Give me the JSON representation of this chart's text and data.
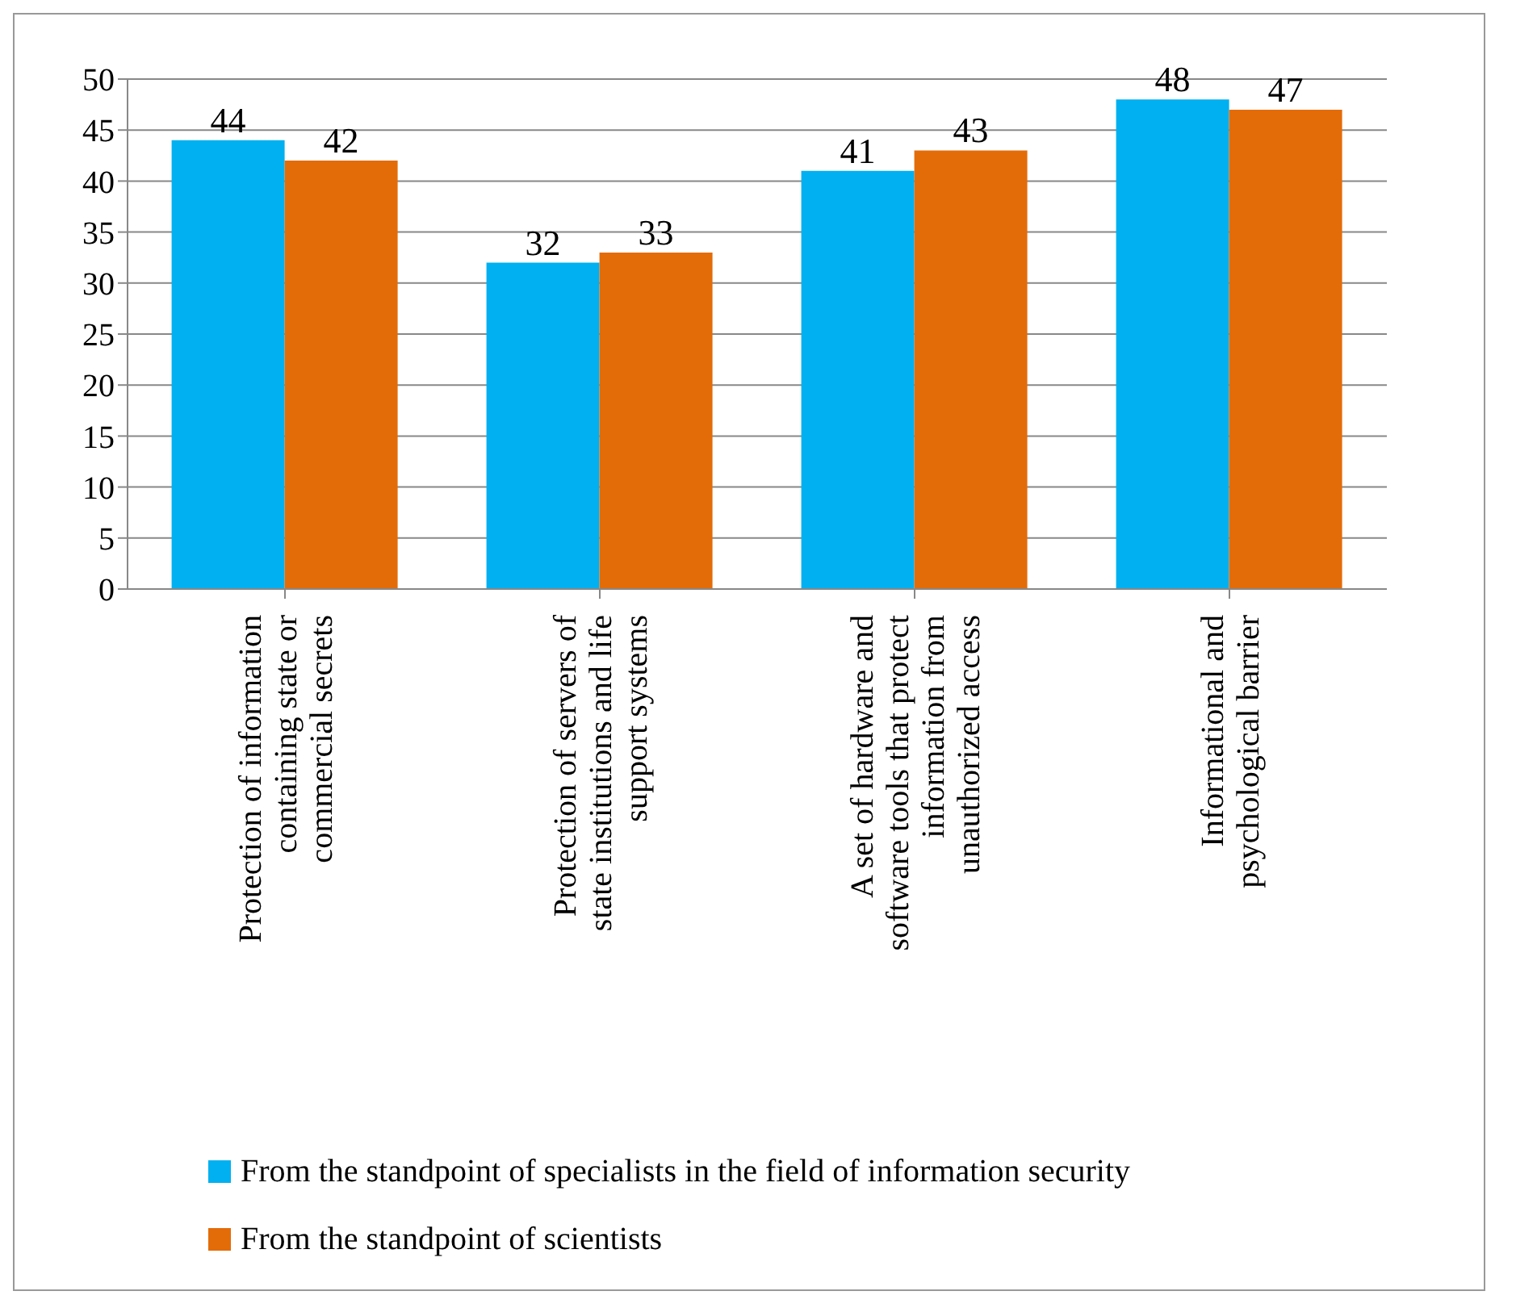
{
  "chart_data": {
    "type": "bar",
    "categories": [
      "Protection of information containing state or commercial secrets",
      "Protection of servers of state institutions and life support systems",
      "A set of hardware and software tools that protect information from unauthorized access",
      "Informational and psychological barrier"
    ],
    "series": [
      {
        "name": "From the standpoint of specialists in the field of information security",
        "color": "#00b0f0",
        "values": [
          44,
          32,
          41,
          48
        ]
      },
      {
        "name": "From the standpoint of scientists",
        "color": "#e36c09",
        "values": [
          42,
          33,
          43,
          47
        ]
      }
    ],
    "ylim": [
      0,
      50
    ],
    "yticks": [
      0,
      5,
      10,
      15,
      20,
      25,
      30,
      35,
      40,
      45,
      50
    ],
    "grid": "y",
    "legend": "bottom",
    "data_labels": true
  }
}
